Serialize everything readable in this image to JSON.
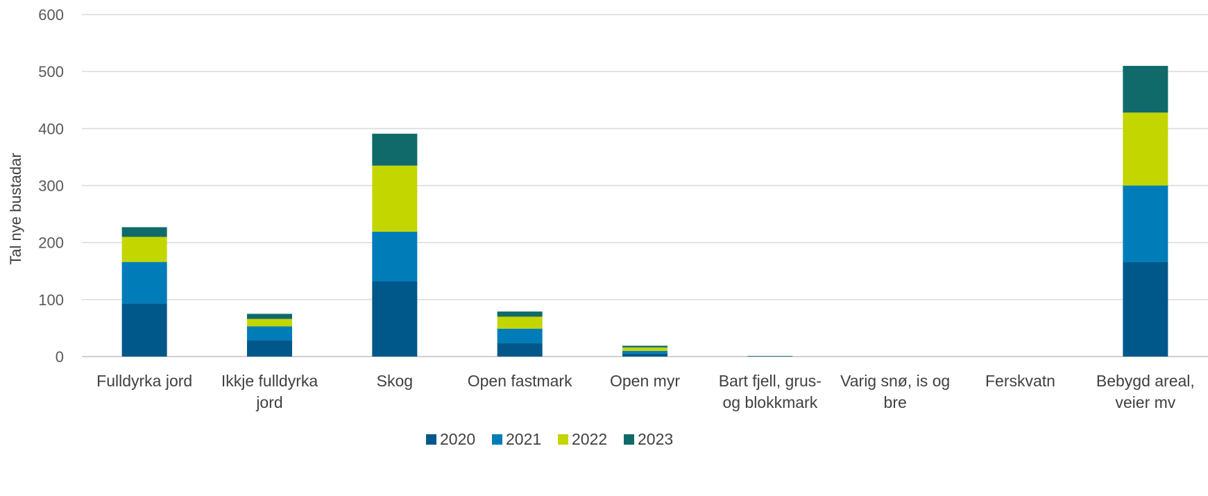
{
  "chart_data": {
    "type": "bar",
    "stacked": true,
    "title": "",
    "xlabel": "",
    "ylabel": "Tal nye bustadar",
    "ylim": [
      0,
      600
    ],
    "yticks": [
      0,
      100,
      200,
      300,
      400,
      500,
      600
    ],
    "grid": true,
    "legend_position": "bottom",
    "categories": [
      [
        "Fulldyrka jord"
      ],
      [
        "Ikkje fulldyrka",
        "jord"
      ],
      [
        "Skog"
      ],
      [
        "Open fastmark"
      ],
      [
        "Open myr"
      ],
      [
        "Bart fjell, grus-",
        "og blokkmark"
      ],
      [
        "Varig snø, is og",
        "bre"
      ],
      [
        "Ferskvatn"
      ],
      [
        "Bebygd areal,",
        "veier mv"
      ]
    ],
    "series": [
      {
        "name": "2020",
        "color": "#00588a",
        "values": [
          93,
          29,
          132,
          24,
          5,
          0,
          0,
          0,
          166
        ]
      },
      {
        "name": "2021",
        "color": "#007db8",
        "values": [
          73,
          24,
          87,
          25,
          5,
          0,
          0,
          0,
          134
        ]
      },
      {
        "name": "2022",
        "color": "#c4d600",
        "values": [
          44,
          13,
          116,
          21,
          6,
          0,
          0,
          0,
          128
        ]
      },
      {
        "name": "2023",
        "color": "#106a6a",
        "values": [
          17,
          9,
          56,
          9,
          3,
          1,
          0,
          0,
          82
        ]
      }
    ]
  }
}
